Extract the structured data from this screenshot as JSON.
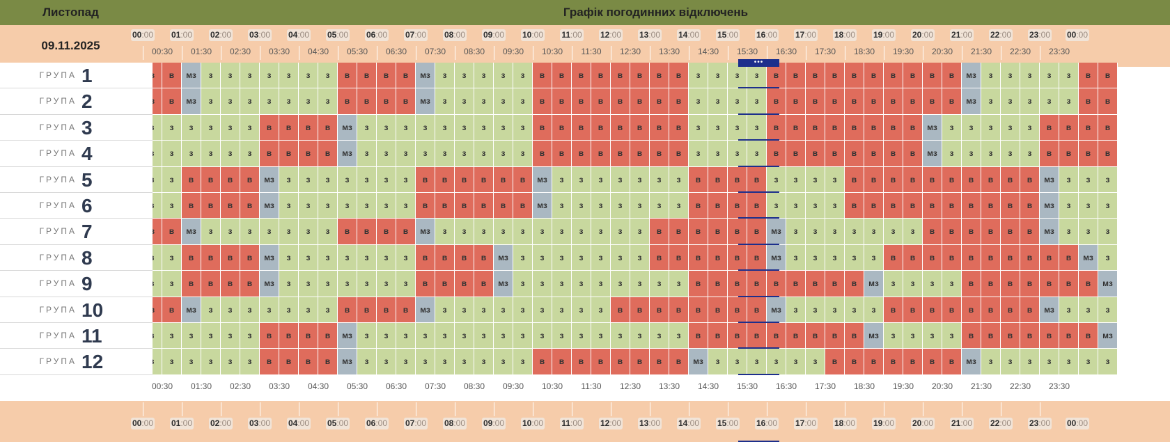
{
  "header": {
    "month": "Листопад",
    "title": "Графік погодинних відключень",
    "date": "09.11.2025"
  },
  "colors": {
    "header_bg": "#7a8a45",
    "band_bg": "#f6ccaa",
    "power_on": "#c8d89e",
    "power_off": "#df6c5c",
    "possible_off": "#aab8c2",
    "current_marker": "#1d2f8c"
  },
  "legend_codes": {
    "on": "з",
    "off": "в",
    "maybe": "мз"
  },
  "hour_labels": [
    {
      "h": "00",
      "m": ":00"
    },
    {
      "h": "01",
      "m": ":00"
    },
    {
      "h": "02",
      "m": ":00"
    },
    {
      "h": "03",
      "m": ":00"
    },
    {
      "h": "04",
      "m": ":00"
    },
    {
      "h": "05",
      "m": ":00"
    },
    {
      "h": "06",
      "m": ":00"
    },
    {
      "h": "07",
      "m": ":00"
    },
    {
      "h": "08",
      "m": ":00"
    },
    {
      "h": "09",
      "m": ":00"
    },
    {
      "h": "10",
      "m": ":00"
    },
    {
      "h": "11",
      "m": ":00"
    },
    {
      "h": "12",
      "m": ":00"
    },
    {
      "h": "13",
      "m": ":00"
    },
    {
      "h": "14",
      "m": ":00"
    },
    {
      "h": "15",
      "m": ":00"
    },
    {
      "h": "16",
      "m": ":00"
    },
    {
      "h": "17",
      "m": ":00"
    },
    {
      "h": "18",
      "m": ":00"
    },
    {
      "h": "19",
      "m": ":00"
    },
    {
      "h": "20",
      "m": ":00"
    },
    {
      "h": "21",
      "m": ":00"
    },
    {
      "h": "22",
      "m": ":00"
    },
    {
      "h": "23",
      "m": ":00"
    },
    {
      "h": "00",
      "m": ":00"
    }
  ],
  "half_labels": [
    "00:30",
    "01:30",
    "02:30",
    "03:30",
    "04:30",
    "05:30",
    "06:30",
    "07:30",
    "08:30",
    "09:30",
    "10:30",
    "11:30",
    "12:30",
    "13:30",
    "14:30",
    "15:30",
    "16:30",
    "17:30",
    "18:30",
    "19:30",
    "20:30",
    "21:30",
    "22:30",
    "23:30"
  ],
  "current_slot": {
    "index": 28,
    "marker": "•••"
  },
  "group_word": "ГРУПА",
  "groups": [
    {
      "number": "1",
      "slots": [
        "в",
        "в",
        "мз",
        "з",
        "з",
        "з",
        "з",
        "з",
        "з",
        "з",
        "в",
        "в",
        "в",
        "в",
        "мз",
        "з",
        "з",
        "з",
        "з",
        "з",
        "в",
        "в",
        "в",
        "в",
        "в",
        "в",
        "в",
        "в",
        "з",
        "з",
        "з",
        "з",
        "в",
        "в",
        "в",
        "в",
        "в",
        "в",
        "в",
        "в",
        "в",
        "в",
        "мз",
        "з",
        "з",
        "з",
        "з",
        "з",
        "в",
        "в"
      ]
    },
    {
      "number": "2",
      "slots": [
        "в",
        "в",
        "мз",
        "з",
        "з",
        "з",
        "з",
        "з",
        "з",
        "з",
        "в",
        "в",
        "в",
        "в",
        "мз",
        "з",
        "з",
        "з",
        "з",
        "з",
        "в",
        "в",
        "в",
        "в",
        "в",
        "в",
        "в",
        "в",
        "з",
        "з",
        "з",
        "з",
        "в",
        "в",
        "в",
        "в",
        "в",
        "в",
        "в",
        "в",
        "в",
        "в",
        "мз",
        "з",
        "з",
        "з",
        "з",
        "з",
        "в",
        "в"
      ]
    },
    {
      "number": "3",
      "slots": [
        "з",
        "з",
        "з",
        "з",
        "з",
        "з",
        "в",
        "в",
        "в",
        "в",
        "мз",
        "з",
        "з",
        "з",
        "з",
        "з",
        "з",
        "з",
        "з",
        "з",
        "в",
        "в",
        "в",
        "в",
        "в",
        "в",
        "в",
        "в",
        "з",
        "з",
        "з",
        "з",
        "в",
        "в",
        "в",
        "в",
        "в",
        "в",
        "в",
        "в",
        "мз",
        "з",
        "з",
        "з",
        "з",
        "з",
        "в",
        "в",
        "в",
        "в"
      ]
    },
    {
      "number": "4",
      "slots": [
        "з",
        "з",
        "з",
        "з",
        "з",
        "з",
        "в",
        "в",
        "в",
        "в",
        "мз",
        "з",
        "з",
        "з",
        "з",
        "з",
        "з",
        "з",
        "з",
        "з",
        "в",
        "в",
        "в",
        "в",
        "в",
        "в",
        "в",
        "в",
        "з",
        "з",
        "з",
        "з",
        "в",
        "в",
        "в",
        "в",
        "в",
        "в",
        "в",
        "в",
        "мз",
        "з",
        "з",
        "з",
        "з",
        "з",
        "в",
        "в",
        "в",
        "в"
      ]
    },
    {
      "number": "5",
      "slots": [
        "з",
        "з",
        "в",
        "в",
        "в",
        "в",
        "мз",
        "з",
        "з",
        "з",
        "з",
        "з",
        "з",
        "з",
        "в",
        "в",
        "в",
        "в",
        "в",
        "в",
        "мз",
        "з",
        "з",
        "з",
        "з",
        "з",
        "з",
        "з",
        "в",
        "в",
        "в",
        "в",
        "з",
        "з",
        "з",
        "з",
        "в",
        "в",
        "в",
        "в",
        "в",
        "в",
        "в",
        "в",
        "в",
        "в",
        "мз",
        "з",
        "з",
        "з"
      ]
    },
    {
      "number": "6",
      "slots": [
        "з",
        "з",
        "в",
        "в",
        "в",
        "в",
        "мз",
        "з",
        "з",
        "з",
        "з",
        "з",
        "з",
        "з",
        "в",
        "в",
        "в",
        "в",
        "в",
        "в",
        "мз",
        "з",
        "з",
        "з",
        "з",
        "з",
        "з",
        "з",
        "в",
        "в",
        "в",
        "в",
        "з",
        "з",
        "з",
        "з",
        "в",
        "в",
        "в",
        "в",
        "в",
        "в",
        "в",
        "в",
        "в",
        "в",
        "мз",
        "з",
        "з",
        "з"
      ]
    },
    {
      "number": "7",
      "slots": [
        "в",
        "в",
        "мз",
        "з",
        "з",
        "з",
        "з",
        "з",
        "з",
        "з",
        "в",
        "в",
        "в",
        "в",
        "мз",
        "з",
        "з",
        "з",
        "з",
        "з",
        "з",
        "з",
        "з",
        "з",
        "з",
        "з",
        "в",
        "в",
        "в",
        "в",
        "в",
        "в",
        "мз",
        "з",
        "з",
        "з",
        "з",
        "з",
        "з",
        "з",
        "в",
        "в",
        "в",
        "в",
        "в",
        "в",
        "мз",
        "з",
        "з",
        "з"
      ]
    },
    {
      "number": "8",
      "slots": [
        "з",
        "з",
        "в",
        "в",
        "в",
        "в",
        "мз",
        "з",
        "з",
        "з",
        "з",
        "з",
        "з",
        "з",
        "в",
        "в",
        "в",
        "в",
        "мз",
        "з",
        "з",
        "з",
        "з",
        "з",
        "з",
        "з",
        "в",
        "в",
        "в",
        "в",
        "в",
        "в",
        "мз",
        "з",
        "з",
        "з",
        "з",
        "з",
        "в",
        "в",
        "в",
        "в",
        "в",
        "в",
        "в",
        "в",
        "в",
        "в",
        "мз",
        "з"
      ]
    },
    {
      "number": "9",
      "slots": [
        "з",
        "з",
        "в",
        "в",
        "в",
        "в",
        "мз",
        "з",
        "з",
        "з",
        "з",
        "з",
        "з",
        "з",
        "в",
        "в",
        "в",
        "в",
        "мз",
        "з",
        "з",
        "з",
        "з",
        "з",
        "з",
        "з",
        "з",
        "з",
        "в",
        "в",
        "в",
        "в",
        "в",
        "в",
        "в",
        "в",
        "в",
        "мз",
        "з",
        "з",
        "з",
        "з",
        "в",
        "в",
        "в",
        "в",
        "в",
        "в",
        "в",
        "мз"
      ]
    },
    {
      "number": "10",
      "slots": [
        "в",
        "в",
        "мз",
        "з",
        "з",
        "з",
        "з",
        "з",
        "з",
        "з",
        "в",
        "в",
        "в",
        "в",
        "мз",
        "з",
        "з",
        "з",
        "з",
        "з",
        "з",
        "з",
        "з",
        "з",
        "в",
        "в",
        "в",
        "в",
        "в",
        "в",
        "в",
        "в",
        "мз",
        "з",
        "з",
        "з",
        "з",
        "з",
        "в",
        "в",
        "в",
        "в",
        "в",
        "в",
        "в",
        "в",
        "мз",
        "з",
        "з",
        "з"
      ]
    },
    {
      "number": "11",
      "slots": [
        "з",
        "з",
        "з",
        "з",
        "з",
        "з",
        "в",
        "в",
        "в",
        "в",
        "мз",
        "з",
        "з",
        "з",
        "з",
        "з",
        "з",
        "з",
        "з",
        "з",
        "з",
        "з",
        "з",
        "з",
        "з",
        "з",
        "з",
        "з",
        "в",
        "в",
        "в",
        "в",
        "в",
        "в",
        "в",
        "в",
        "в",
        "мз",
        "з",
        "з",
        "з",
        "з",
        "в",
        "в",
        "в",
        "в",
        "в",
        "в",
        "в",
        "мз"
      ]
    },
    {
      "number": "12",
      "slots": [
        "з",
        "з",
        "з",
        "з",
        "з",
        "з",
        "в",
        "в",
        "в",
        "в",
        "мз",
        "з",
        "з",
        "з",
        "з",
        "з",
        "з",
        "з",
        "з",
        "з",
        "в",
        "в",
        "в",
        "в",
        "в",
        "в",
        "в",
        "в",
        "мз",
        "з",
        "з",
        "з",
        "з",
        "з",
        "з",
        "в",
        "в",
        "в",
        "в",
        "в",
        "в",
        "в",
        "мз",
        "з",
        "з",
        "з",
        "з",
        "з",
        "з",
        "з"
      ]
    }
  ]
}
